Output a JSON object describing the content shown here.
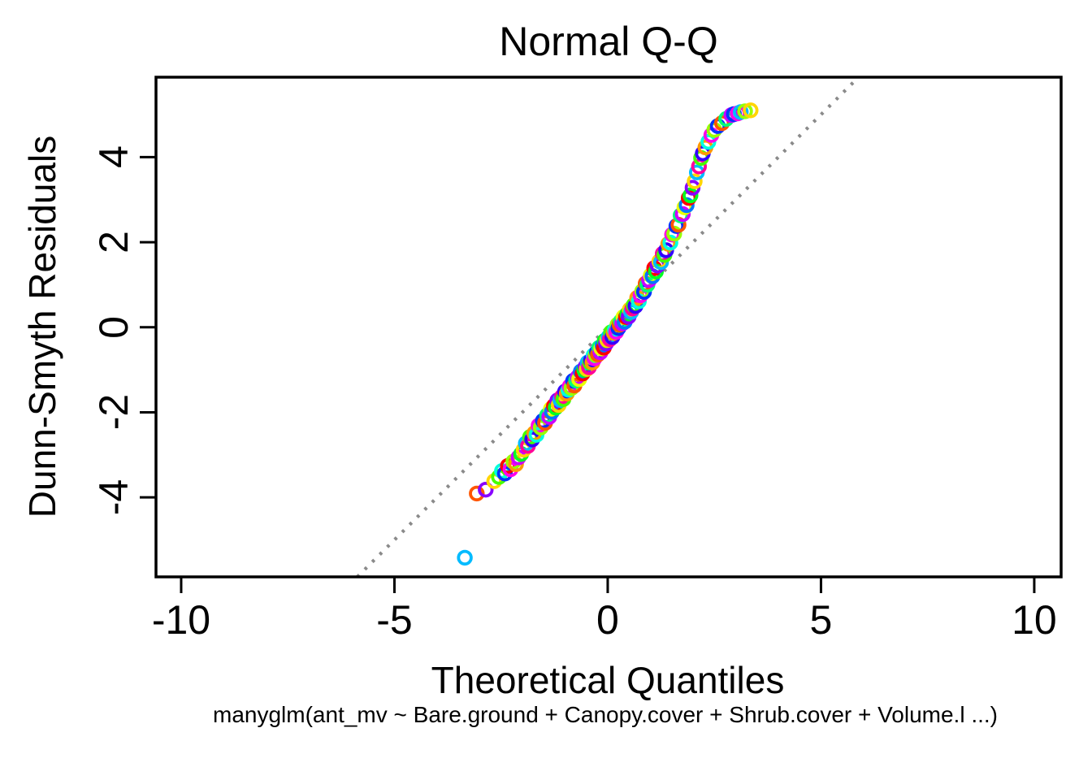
{
  "chart_data": {
    "type": "scatter",
    "variant": "normal-qq-plot",
    "title": "Normal Q-Q",
    "xlabel": "Theoretical Quantiles",
    "ylabel": "Dunn-Smyth Residuals",
    "sub": "manyglm(ant_mv ~ Bare.ground + Canopy.cover + Shrub.cover + Volume.l ...)",
    "xlim": [
      -10.59,
      10.63
    ],
    "ylim": [
      -5.87,
      5.88
    ],
    "xticks": [
      -10,
      -5,
      0,
      5,
      10
    ],
    "yticks": [
      -4,
      -2,
      0,
      2,
      4
    ],
    "grid": false,
    "legend": "none",
    "reference_line": {
      "kind": "abline",
      "intercept": 0,
      "slope": 1,
      "style": "dotted",
      "color": "#8a8a8a"
    },
    "marker": {
      "shape": "open-circle",
      "radius_px": 7.8,
      "stroke_px": 3.8
    },
    "palette": [
      "#FF0000",
      "#FF5500",
      "#FF9900",
      "#FFD500",
      "#EAFF00",
      "#99FF00",
      "#44FF00",
      "#00FF22",
      "#00FF77",
      "#00FFDD",
      "#00BBFF",
      "#0077FF",
      "#0033FF",
      "#3300FF",
      "#8800FF",
      "#CC00FF",
      "#FF00EA",
      "#FF0099"
    ],
    "points": [
      [
        -3.35,
        -5.42,
        10
      ],
      [
        -3.07,
        -3.91,
        1
      ],
      [
        -2.86,
        -3.82,
        14
      ],
      [
        -2.66,
        -3.62,
        3
      ],
      [
        -2.55,
        -3.52,
        6
      ],
      [
        -2.48,
        -3.38,
        9
      ],
      [
        -2.41,
        -3.44,
        12
      ],
      [
        -2.34,
        -3.26,
        0
      ],
      [
        -2.28,
        -3.34,
        16
      ],
      [
        -2.21,
        -3.16,
        5
      ],
      [
        -2.15,
        -3.22,
        2
      ],
      [
        -2.09,
        -3.06,
        15
      ],
      [
        -2.03,
        -2.98,
        7
      ],
      [
        -1.97,
        -2.88
      ],
      [
        -1.92,
        -2.73
      ],
      [
        -1.87,
        -2.79
      ],
      [
        -1.82,
        -2.58
      ],
      [
        -1.77,
        -2.64
      ],
      [
        -1.72,
        -2.49
      ],
      [
        -1.67,
        -2.53
      ],
      [
        -1.62,
        -2.31
      ],
      [
        -1.57,
        -2.36
      ],
      [
        -1.52,
        -2.2
      ],
      [
        -1.47,
        -2.25
      ],
      [
        -1.42,
        -2.07
      ],
      [
        -1.37,
        -2.11
      ],
      [
        -1.33,
        -1.92
      ],
      [
        -1.31,
        -1.99
      ],
      [
        -1.26,
        -1.85
      ],
      [
        -1.22,
        -1.89
      ],
      [
        -1.18,
        -1.72
      ],
      [
        -1.15,
        -1.83
      ],
      [
        -1.11,
        -1.71
      ],
      [
        -1.07,
        -1.63
      ],
      [
        -1.04,
        -1.69
      ],
      [
        -1.0,
        -1.51
      ],
      [
        -0.96,
        -1.56
      ],
      [
        -0.92,
        -1.47
      ],
      [
        -0.89,
        -1.39
      ],
      [
        -0.85,
        -1.43
      ],
      [
        -0.81,
        -1.26
      ],
      [
        -0.78,
        -1.37
      ],
      [
        -0.74,
        -1.25
      ],
      [
        -0.7,
        -1.17
      ],
      [
        -0.67,
        -1.22
      ],
      [
        -0.63,
        -1.04
      ],
      [
        -0.59,
        -1.09
      ],
      [
        -0.55,
        -1.0
      ],
      [
        -0.52,
        -0.93
      ],
      [
        -0.49,
        -0.98
      ],
      [
        -0.47,
        -0.83
      ],
      [
        -0.44,
        -0.94
      ],
      [
        -0.41,
        -0.83
      ],
      [
        -0.39,
        -0.78
      ],
      [
        -0.36,
        -0.83
      ],
      [
        -0.33,
        -0.66
      ],
      [
        -0.31,
        -0.73
      ],
      [
        -0.28,
        -0.65
      ],
      [
        -0.25,
        -0.58
      ],
      [
        -0.23,
        -0.64
      ],
      [
        -0.2,
        -0.48
      ],
      [
        -0.17,
        -0.59
      ],
      [
        -0.15,
        -0.5
      ],
      [
        -0.12,
        -0.43
      ],
      [
        -0.09,
        -0.48
      ],
      [
        -0.07,
        -0.32
      ],
      [
        -0.04,
        -0.38
      ],
      [
        -0.01,
        -0.3
      ],
      [
        0.02,
        -0.23
      ],
      [
        0.05,
        -0.28
      ],
      [
        0.08,
        -0.12
      ],
      [
        0.11,
        -0.23
      ],
      [
        0.14,
        -0.13
      ],
      [
        0.17,
        -0.06
      ],
      [
        0.2,
        -0.11
      ],
      [
        0.23,
        0.06
      ],
      [
        0.25,
        -0.02
      ],
      [
        0.28,
        0.06
      ],
      [
        0.31,
        0.14
      ],
      [
        0.34,
        0.09
      ],
      [
        0.37,
        0.24
      ],
      [
        0.4,
        0.13
      ],
      [
        0.43,
        0.24
      ],
      [
        0.46,
        0.31
      ],
      [
        0.49,
        0.25
      ],
      [
        0.52,
        0.42
      ],
      [
        0.55,
        0.36
      ],
      [
        0.58,
        0.44
      ],
      [
        0.61,
        0.52
      ],
      [
        0.65,
        0.5
      ],
      [
        0.69,
        0.69
      ],
      [
        0.73,
        0.61
      ],
      [
        0.77,
        0.75
      ],
      [
        0.81,
        0.85
      ],
      [
        0.85,
        0.83
      ],
      [
        0.89,
        1.03
      ],
      [
        0.93,
        1.0
      ],
      [
        0.97,
        1.11
      ],
      [
        1.01,
        1.22
      ],
      [
        1.05,
        1.2
      ],
      [
        1.09,
        1.39
      ],
      [
        1.13,
        1.31
      ],
      [
        1.17,
        1.45
      ],
      [
        1.21,
        1.55
      ],
      [
        1.25,
        1.53
      ],
      [
        1.29,
        1.73
      ],
      [
        1.33,
        1.7
      ],
      [
        1.37,
        1.81
      ],
      [
        1.42,
        1.96
      ],
      [
        1.47,
        1.99
      ],
      [
        1.51,
        2.18
      ],
      [
        1.56,
        2.2
      ],
      [
        1.61,
        2.38
      ],
      [
        1.66,
        2.41
      ],
      [
        1.71,
        2.63
      ],
      [
        1.76,
        2.66
      ],
      [
        1.8,
        2.82
      ],
      [
        1.85,
        2.87
      ],
      [
        1.9,
        3.04
      ],
      [
        1.94,
        3.1
      ],
      [
        1.99,
        3.28
      ],
      [
        2.04,
        3.43
      ],
      [
        2.09,
        3.64
      ],
      [
        2.14,
        3.78
      ],
      [
        2.19,
        3.98
      ],
      [
        2.23,
        4.09
      ],
      [
        2.29,
        4.23
      ],
      [
        2.36,
        4.36
      ],
      [
        2.43,
        4.52
      ],
      [
        2.5,
        4.64
      ],
      [
        2.58,
        4.73
      ],
      [
        2.68,
        4.8
      ],
      [
        2.78,
        4.9
      ],
      [
        2.9,
        4.99
      ],
      [
        2.96,
        5.01,
        12
      ],
      [
        3.05,
        5.03,
        16
      ],
      [
        3.12,
        5.06,
        10
      ],
      [
        3.22,
        5.08,
        5
      ],
      [
        3.35,
        5.1,
        3
      ]
    ]
  }
}
